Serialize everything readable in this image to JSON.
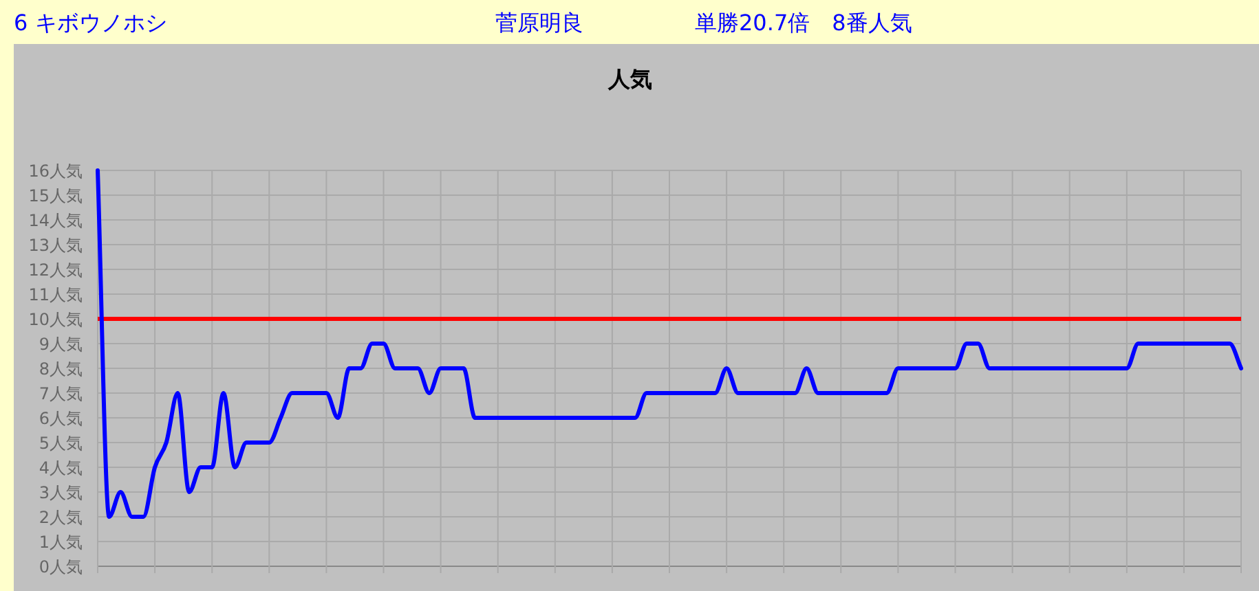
{
  "chart_data": {
    "type": "line",
    "title": "人気",
    "annotations": [
      "6 キボウノホシ",
      "菅原明良",
      "単勝20.7倍　8番人気"
    ],
    "categories": [
      null,
      null,
      null,
      null,
      null,
      null,
      null,
      null,
      null,
      null,
      null,
      null,
      null,
      null,
      null,
      null,
      null,
      null,
      null,
      null,
      null,
      null,
      null,
      null,
      null,
      null,
      null,
      null,
      null,
      null,
      null,
      null,
      null,
      null,
      null,
      null,
      null,
      null,
      null,
      null,
      null,
      null,
      null,
      null,
      null,
      null,
      null,
      null,
      null,
      null,
      null,
      null,
      null,
      null,
      null,
      null,
      null,
      null,
      null,
      null,
      null,
      null,
      null,
      null,
      null,
      null,
      null,
      null,
      null,
      null,
      null,
      null,
      null,
      null,
      null,
      null,
      null,
      null,
      null,
      null,
      null,
      null,
      null,
      null,
      null,
      null,
      null,
      null,
      null,
      null,
      null,
      null,
      null,
      null,
      null,
      null,
      null,
      null,
      null,
      null,
      null
    ],
    "series": [
      {
        "color": "#0000ff",
        "values": [
          16,
          2,
          3,
          2,
          2,
          4,
          5,
          7,
          3,
          4,
          4,
          7,
          4,
          5,
          5,
          5,
          6,
          7,
          7,
          7,
          7,
          6,
          8,
          8,
          9,
          9,
          8,
          8,
          8,
          7,
          8,
          8,
          8,
          6,
          6,
          6,
          6,
          6,
          6,
          6,
          6,
          6,
          6,
          6,
          6,
          6,
          6,
          6,
          7,
          7,
          7,
          7,
          7,
          7,
          7,
          8,
          7,
          7,
          7,
          7,
          7,
          7,
          8,
          7,
          7,
          7,
          7,
          7,
          7,
          7,
          8,
          8,
          8,
          8,
          8,
          8,
          9,
          9,
          8,
          8,
          8,
          8,
          8,
          8,
          8,
          8,
          8,
          8,
          8,
          8,
          8,
          9,
          9,
          9,
          9,
          9,
          9,
          9,
          9,
          9,
          8
        ]
      }
    ],
    "ylim": [
      0,
      16
    ],
    "yticks": [
      {
        "value": 0,
        "label": "0人気"
      },
      {
        "value": 1,
        "label": "1人気"
      },
      {
        "value": 2,
        "label": "2人気"
      },
      {
        "value": 3,
        "label": "3人気"
      },
      {
        "value": 4,
        "label": "4人気"
      },
      {
        "value": 5,
        "label": "5人気"
      },
      {
        "value": 6,
        "label": "6人気"
      },
      {
        "value": 7,
        "label": "7人気"
      },
      {
        "value": 8,
        "label": "8人気"
      },
      {
        "value": 9,
        "label": "9人気"
      },
      {
        "value": 10,
        "label": "10人気"
      },
      {
        "value": 11,
        "label": "11人気"
      },
      {
        "value": 12,
        "label": "12人気"
      },
      {
        "value": 13,
        "label": "13人気"
      },
      {
        "value": 14,
        "label": "14人気"
      },
      {
        "value": 15,
        "label": "15人気"
      },
      {
        "value": 16,
        "label": "16人気"
      }
    ],
    "ref_lines": [
      {
        "axis": "y",
        "value": 10,
        "color": "#ff0000"
      }
    ],
    "grid": true,
    "marker": "none",
    "line_style": "solid"
  }
}
